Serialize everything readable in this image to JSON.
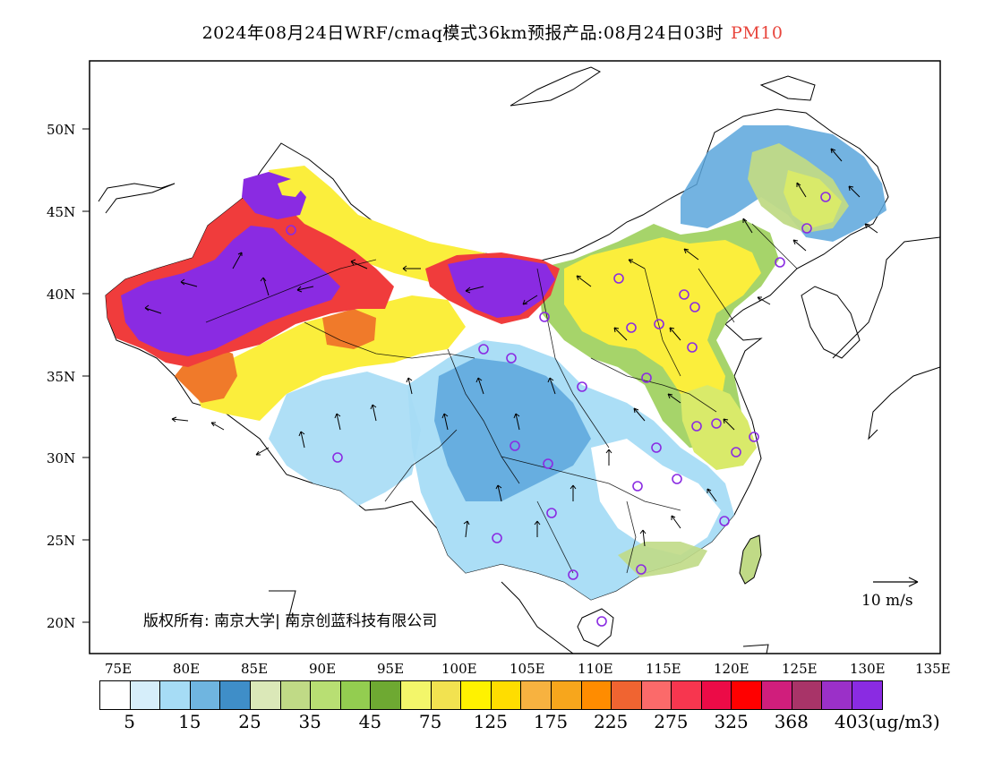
{
  "title": {
    "main": "2024年08月24日WRF/cmaq模式36km预报产品:08月24日03时",
    "pollutant": "PM10",
    "pollutant_color": "#e8453c"
  },
  "axes": {
    "lat_labels": [
      "50N",
      "45N",
      "40N",
      "35N",
      "30N",
      "25N",
      "20N"
    ],
    "lon_labels": [
      "75E",
      "80E",
      "85E",
      "90E",
      "95E",
      "100E",
      "105E",
      "110E",
      "115E",
      "120E",
      "125E",
      "130E",
      "135E"
    ]
  },
  "copyright": "版权所有: 南京大学| 南京创蓝科技有限公司",
  "wind_scale": {
    "label": "10 m/s"
  },
  "legend": {
    "colors": [
      "#ffffff",
      "#d6eefa",
      "#a6dcf5",
      "#6fb5e0",
      "#3f8ec8",
      "#dbe8b8",
      "#c0da86",
      "#b8df73",
      "#93cd50",
      "#6ea932",
      "#f3f66a",
      "#f2e250",
      "#fff200",
      "#ffdd00",
      "#f7b240",
      "#f7a61c",
      "#ff8c00",
      "#f06431",
      "#fb6a6a",
      "#f7364f",
      "#ec0b47",
      "#ff0000",
      "#d01e7c",
      "#a83468",
      "#9b30c8",
      "#8a2be2"
    ],
    "labels": [
      "5",
      "15",
      "25",
      "35",
      "45",
      "75",
      "125",
      "175",
      "225",
      "275",
      "325",
      "368",
      "403"
    ],
    "unit": "(ug/m3)"
  },
  "map": {
    "colors": {
      "frame": "#000000",
      "purple": "#8a2be2",
      "red": "#f03c3c",
      "orange": "#f07a2a",
      "yellow": "#fbee3c",
      "yellowgreen": "#d9ea6a",
      "green": "#9ccf5a",
      "lightblue": "#a6dcf5",
      "blue": "#5aa6dc",
      "station": "#8a2be2"
    }
  }
}
